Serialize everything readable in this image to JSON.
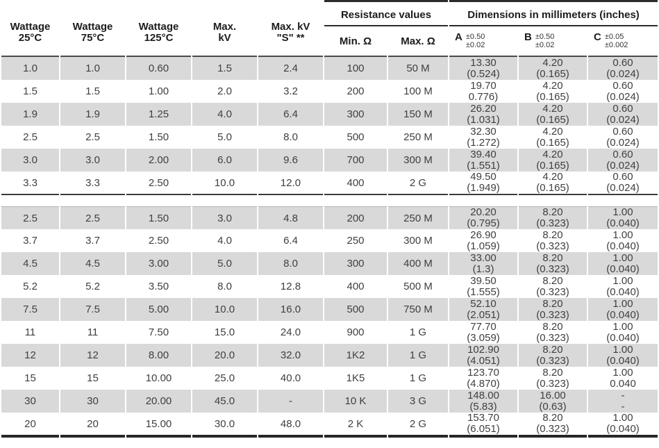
{
  "header": {
    "wattage_columns": [
      {
        "line1": "Wattage",
        "line2": "25°C"
      },
      {
        "line1": "Wattage",
        "line2": "75°C"
      },
      {
        "line1": "Wattage",
        "line2": "125°C"
      },
      {
        "line1": "Max.",
        "line2": "kV"
      },
      {
        "line1": "Max. kV",
        "line2": "\"S\" **"
      }
    ],
    "resistance_group": "Resistance values",
    "dimensions_group": "Dimensions in millimeters (inches)",
    "min_ohm": "Min. Ω",
    "max_ohm": "Max. Ω",
    "dim_a": {
      "letter": "A",
      "tol_top": "±0.50",
      "tol_bottom": "±0.02"
    },
    "dim_b": {
      "letter": "B",
      "tol_top": "±0.50",
      "tol_bottom": "±0.02"
    },
    "dim_c": {
      "letter": "C",
      "tol_top": "±0.05",
      "tol_bottom": "±0.002"
    }
  },
  "colors": {
    "row_shade": "#d9d9d9",
    "rule_dark": "#2b2b2b",
    "text_data": "#3f3f3f"
  },
  "table": {
    "groups": [
      {
        "rows": [
          {
            "w25": "1.0",
            "w75": "1.0",
            "w125": "0.60",
            "max_kv": "1.5",
            "max_kv_s": "2.4",
            "min_ohm": "100",
            "max_ohm": "50 M",
            "a_mm": "13.30",
            "a_in": "(0.524)",
            "b_mm": "4.20",
            "b_in": "(0.165)",
            "c_mm": "0.60",
            "c_in": "(0.024)"
          },
          {
            "w25": "1.5",
            "w75": "1.5",
            "w125": "1.00",
            "max_kv": "2.0",
            "max_kv_s": "3.2",
            "min_ohm": "200",
            "max_ohm": "100 M",
            "a_mm": "19.70",
            "a_in": "0.776)",
            "b_mm": "4.20",
            "b_in": "(0.165)",
            "c_mm": "0.60",
            "c_in": "(0.024)"
          },
          {
            "w25": "1.9",
            "w75": "1.9",
            "w125": "1.25",
            "max_kv": "4.0",
            "max_kv_s": "6.4",
            "min_ohm": "300",
            "max_ohm": "150 M",
            "a_mm": "26.20",
            "a_in": "(1.031)",
            "b_mm": "4.20",
            "b_in": "(0.165)",
            "c_mm": "0.60",
            "c_in": "(0.024)"
          },
          {
            "w25": "2.5",
            "w75": "2.5",
            "w125": "1.50",
            "max_kv": "5.0",
            "max_kv_s": "8.0",
            "min_ohm": "500",
            "max_ohm": "250 M",
            "a_mm": "32.30",
            "a_in": "(1.272)",
            "b_mm": "4.20",
            "b_in": "(0.165)",
            "c_mm": "0.60",
            "c_in": "(0.024)"
          },
          {
            "w25": "3.0",
            "w75": "3.0",
            "w125": "2.00",
            "max_kv": "6.0",
            "max_kv_s": "9.6",
            "min_ohm": "700",
            "max_ohm": "300 M",
            "a_mm": "39.40",
            "a_in": "(1.551)",
            "b_mm": "4.20",
            "b_in": "(0.165)",
            "c_mm": "0.60",
            "c_in": "(0.024)"
          },
          {
            "w25": "3.3",
            "w75": "3.3",
            "w125": "2.50",
            "max_kv": "10.0",
            "max_kv_s": "12.0",
            "min_ohm": "400",
            "max_ohm": "2 G",
            "a_mm": "49.50",
            "a_in": "(1.949)",
            "b_mm": "4.20",
            "b_in": "(0.165)",
            "c_mm": "0.60",
            "c_in": "(0.024)"
          }
        ]
      },
      {
        "rows": [
          {
            "w25": "2.5",
            "w75": "2.5",
            "w125": "1.50",
            "max_kv": "3.0",
            "max_kv_s": "4.8",
            "min_ohm": "200",
            "max_ohm": "250 M",
            "a_mm": "20.20",
            "a_in": "(0.795)",
            "b_mm": "8.20",
            "b_in": "(0.323)",
            "c_mm": "1.00",
            "c_in": "(0.040)"
          },
          {
            "w25": "3.7",
            "w75": "3.7",
            "w125": "2.50",
            "max_kv": "4.0",
            "max_kv_s": "6.4",
            "min_ohm": "250",
            "max_ohm": "300 M",
            "a_mm": "26.90",
            "a_in": "(1.059)",
            "b_mm": "8.20",
            "b_in": "(0.323)",
            "c_mm": "1.00",
            "c_in": "(0.040)"
          },
          {
            "w25": "4.5",
            "w75": "4.5",
            "w125": "3.00",
            "max_kv": "5.0",
            "max_kv_s": "8.0",
            "min_ohm": "300",
            "max_ohm": "400 M",
            "a_mm": "33.00",
            "a_in": "(1.3)",
            "b_mm": "8.20",
            "b_in": "(0.323)",
            "c_mm": "1.00",
            "c_in": "(0.040)"
          },
          {
            "w25": "5.2",
            "w75": "5.2",
            "w125": "3.50",
            "max_kv": "8.0",
            "max_kv_s": "12.8",
            "min_ohm": "400",
            "max_ohm": "500 M",
            "a_mm": "39.50",
            "a_in": "(1.555)",
            "b_mm": "8.20",
            "b_in": "(0.323)",
            "c_mm": "1.00",
            "c_in": "(0.040)"
          },
          {
            "w25": "7.5",
            "w75": "7.5",
            "w125": "5.00",
            "max_kv": "10.0",
            "max_kv_s": "16.0",
            "min_ohm": "500",
            "max_ohm": "750 M",
            "a_mm": "52.10",
            "a_in": "(2.051)",
            "b_mm": "8.20",
            "b_in": "(0.323)",
            "c_mm": "1.00",
            "c_in": "(0.040)"
          },
          {
            "w25": "11",
            "w75": "11",
            "w125": "7.50",
            "max_kv": "15.0",
            "max_kv_s": "24.0",
            "min_ohm": "900",
            "max_ohm": "1 G",
            "a_mm": "77.70",
            "a_in": "(3.059)",
            "b_mm": "8.20",
            "b_in": "(0.323)",
            "c_mm": "1.00",
            "c_in": "(0.040)"
          },
          {
            "w25": "12",
            "w75": "12",
            "w125": "8.00",
            "max_kv": "20.0",
            "max_kv_s": "32.0",
            "min_ohm": "1K2",
            "max_ohm": "1 G",
            "a_mm": "102.90",
            "a_in": "(4.051)",
            "b_mm": "8.20",
            "b_in": "(0.323)",
            "c_mm": "1.00",
            "c_in": "(0.040)"
          },
          {
            "w25": "15",
            "w75": "15",
            "w125": "10.00",
            "max_kv": "25.0",
            "max_kv_s": "40.0",
            "min_ohm": "1K5",
            "max_ohm": "1 G",
            "a_mm": "123.70",
            "a_in": "(4.870)",
            "b_mm": "8.20",
            "b_in": "(0.323)",
            "c_mm": "1.00",
            "c_in": "0.040"
          },
          {
            "w25": "30",
            "w75": "30",
            "w125": "20.00",
            "max_kv": "45.0",
            "max_kv_s": "-",
            "min_ohm": "10 K",
            "max_ohm": "3 G",
            "a_mm": "148.00",
            "a_in": "(5.83)",
            "b_mm": "16.00",
            "b_in": "(0.63)",
            "c_mm": "-",
            "c_in": "-"
          },
          {
            "w25": "20",
            "w75": "20",
            "w125": "15.00",
            "max_kv": "30.0",
            "max_kv_s": "48.0",
            "min_ohm": "2 K",
            "max_ohm": "2 G",
            "a_mm": "153.70",
            "a_in": "(6.051)",
            "b_mm": "8.20",
            "b_in": "(0.323)",
            "c_mm": "1.00",
            "c_in": "(0.040)"
          }
        ]
      }
    ]
  }
}
